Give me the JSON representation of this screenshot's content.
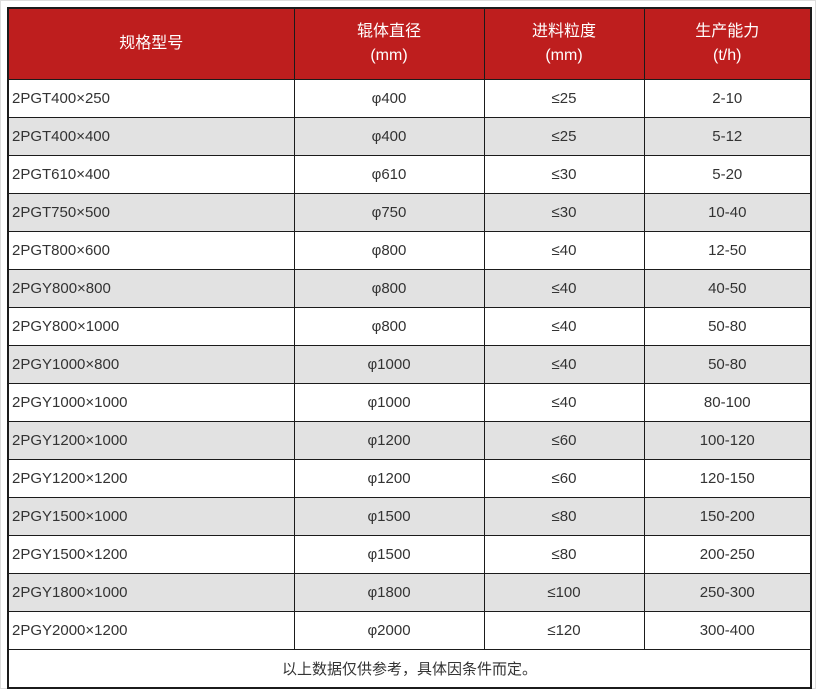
{
  "table": {
    "headers": [
      {
        "label": "规格型号",
        "unit": ""
      },
      {
        "label": "辊体直径",
        "unit": "(mm)"
      },
      {
        "label": "进料粒度",
        "unit": "(mm)"
      },
      {
        "label": "生产能力",
        "unit": "(t/h)"
      }
    ],
    "rows": [
      [
        "2PGT400×250",
        "φ400",
        "≤25",
        "2-10"
      ],
      [
        "2PGT400×400",
        "φ400",
        "≤25",
        "5-12"
      ],
      [
        "2PGT610×400",
        "φ610",
        "≤30",
        "5-20"
      ],
      [
        "2PGT750×500",
        "φ750",
        "≤30",
        "10-40"
      ],
      [
        "2PGT800×600",
        "φ800",
        "≤40",
        "12-50"
      ],
      [
        "2PGY800×800",
        "φ800",
        "≤40",
        "40-50"
      ],
      [
        "2PGY800×1000",
        "φ800",
        "≤40",
        "50-80"
      ],
      [
        "2PGY1000×800",
        "φ1000",
        "≤40",
        "50-80"
      ],
      [
        "2PGY1000×1000",
        "φ1000",
        "≤40",
        "80-100"
      ],
      [
        "2PGY1200×1000",
        "φ1200",
        "≤60",
        "100-120"
      ],
      [
        "2PGY1200×1200",
        "φ1200",
        "≤60",
        "120-150"
      ],
      [
        "2PGY1500×1000",
        "φ1500",
        "≤80",
        "150-200"
      ],
      [
        "2PGY1500×1200",
        "φ1500",
        "≤80",
        "200-250"
      ],
      [
        "2PGY1800×1000",
        "φ1800",
        "≤100",
        "250-300"
      ],
      [
        "2PGY2000×1200",
        "φ2000",
        "≤120",
        "300-400"
      ]
    ],
    "footnote": "以上数据仅供参考，具体因条件而定。"
  },
  "colors": {
    "header_bg": "#BE1E1E",
    "header_text": "#FFFFFF",
    "row_bg": "#FFFFFF",
    "row_alt_bg": "#E2E2E2",
    "border": "#1B1B1B",
    "text": "#333333"
  }
}
